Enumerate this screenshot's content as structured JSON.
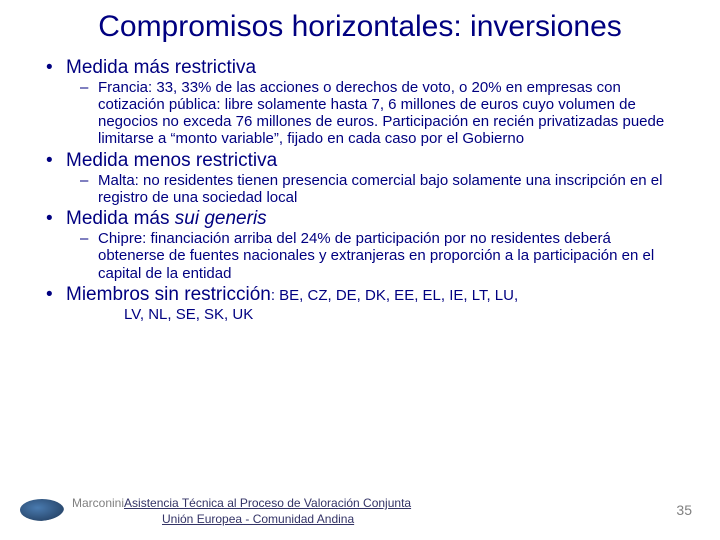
{
  "colors": {
    "text_primary": "#000080",
    "text_muted": "#808080",
    "footer_link": "#333366",
    "background": "#ffffff"
  },
  "typography": {
    "title_fontsize": 30,
    "bullet1_fontsize": 19,
    "bullet2_fontsize": 15,
    "footer_fontsize": 12
  },
  "title": "Compromisos horizontales: inversiones",
  "bullets": [
    {
      "label": "Medida más restrictiva",
      "sub": [
        "Francia: 33, 33% de las acciones o derechos de voto, o 20% en empresas con cotización pública: libre solamente hasta 7, 6 millones de euros cuyo volumen de negocios no exceda 76 millones de euros. Participación en recién privatizadas puede limitarse a “monto variable”, fijado en cada caso por el Gobierno"
      ]
    },
    {
      "label": "Medida menos restrictiva",
      "sub": [
        "Malta: no residentes tienen presencia comercial bajo solamente una inscripción en el registro de una sociedad local"
      ]
    },
    {
      "label_pre": "Medida más ",
      "label_italic": "sui generis",
      "sub": [
        "Chipre: financiación arriba del 24% de participación por no residentes deberá obtenerse de fuentes nacionales y extranjeras en proporción a la participación en el capital de la entidad"
      ]
    },
    {
      "label_pre": "Miembros sin restricción",
      "codes_inline": ": BE, CZ, DE, DK, EE, EL, IE, LT, LU,",
      "codes_line2": "LV, NL, SE, SK, UK"
    }
  ],
  "footer": {
    "author": "Marconini",
    "link_line1": "Asistencia Técnica al Proceso de Valoración Conjunta",
    "link_line2": "Unión Europea - Comunidad Andina"
  },
  "page_number": "35"
}
